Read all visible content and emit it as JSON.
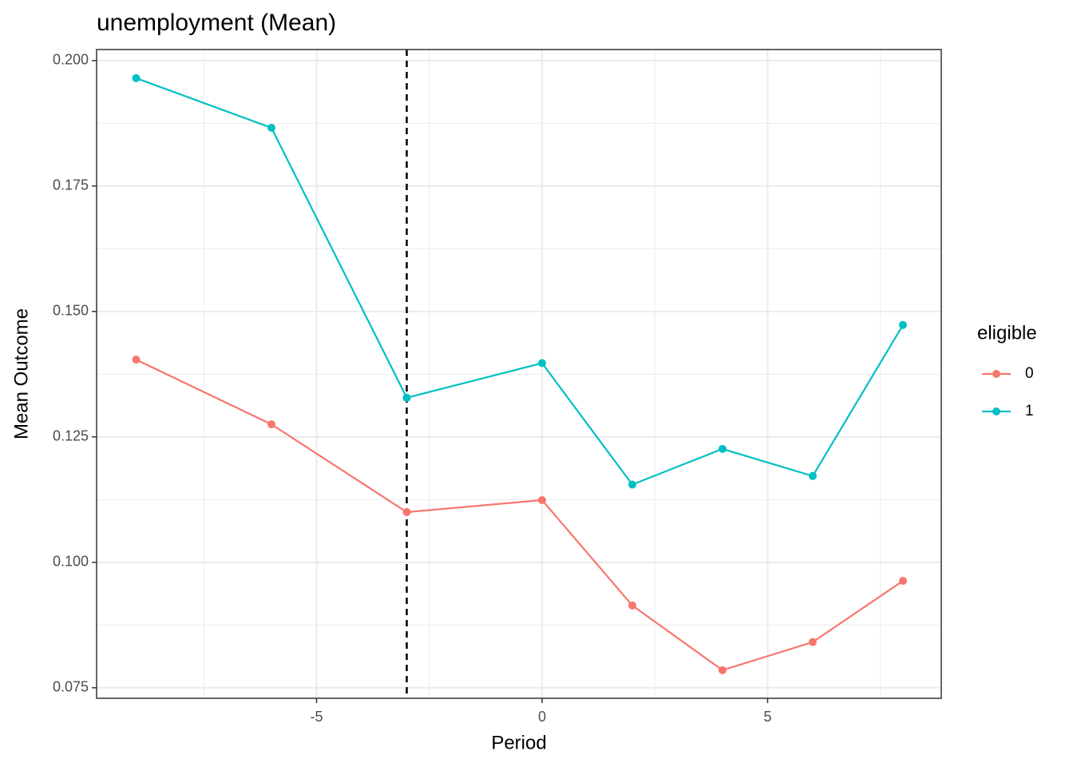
{
  "chart_data": {
    "type": "line",
    "title": "unemployment (Mean)",
    "x_label": "Period",
    "y_label": "Mean Outcome",
    "x": [
      -9,
      -6,
      -3,
      0,
      2,
      4,
      6,
      8
    ],
    "series": [
      {
        "name": "0",
        "color": "#f8766d",
        "values": [
          0.1404,
          0.1275,
          0.11,
          0.1124,
          0.0914,
          0.0785,
          0.0841,
          0.0963
        ]
      },
      {
        "name": "1",
        "color": "#00bfc4",
        "values": [
          0.1965,
          0.1866,
          0.1328,
          0.1397,
          0.1155,
          0.1226,
          0.1172,
          0.1473
        ]
      }
    ],
    "xlim": [
      -9.876,
      8.85
    ],
    "xticks": [
      -5,
      0,
      5
    ],
    "ylim": [
      0.0729,
      0.2022
    ],
    "yticks": [
      0.075,
      {
        "value": 0.1,
        "label": "0.100"
      },
      0.125,
      {
        "value": 0.15,
        "label": "0.150"
      },
      0.175,
      {
        "value": 0.2,
        "label": "0.200"
      }
    ],
    "vline": -3,
    "grid": true,
    "legend_title": "eligible",
    "legend_position": "right"
  }
}
